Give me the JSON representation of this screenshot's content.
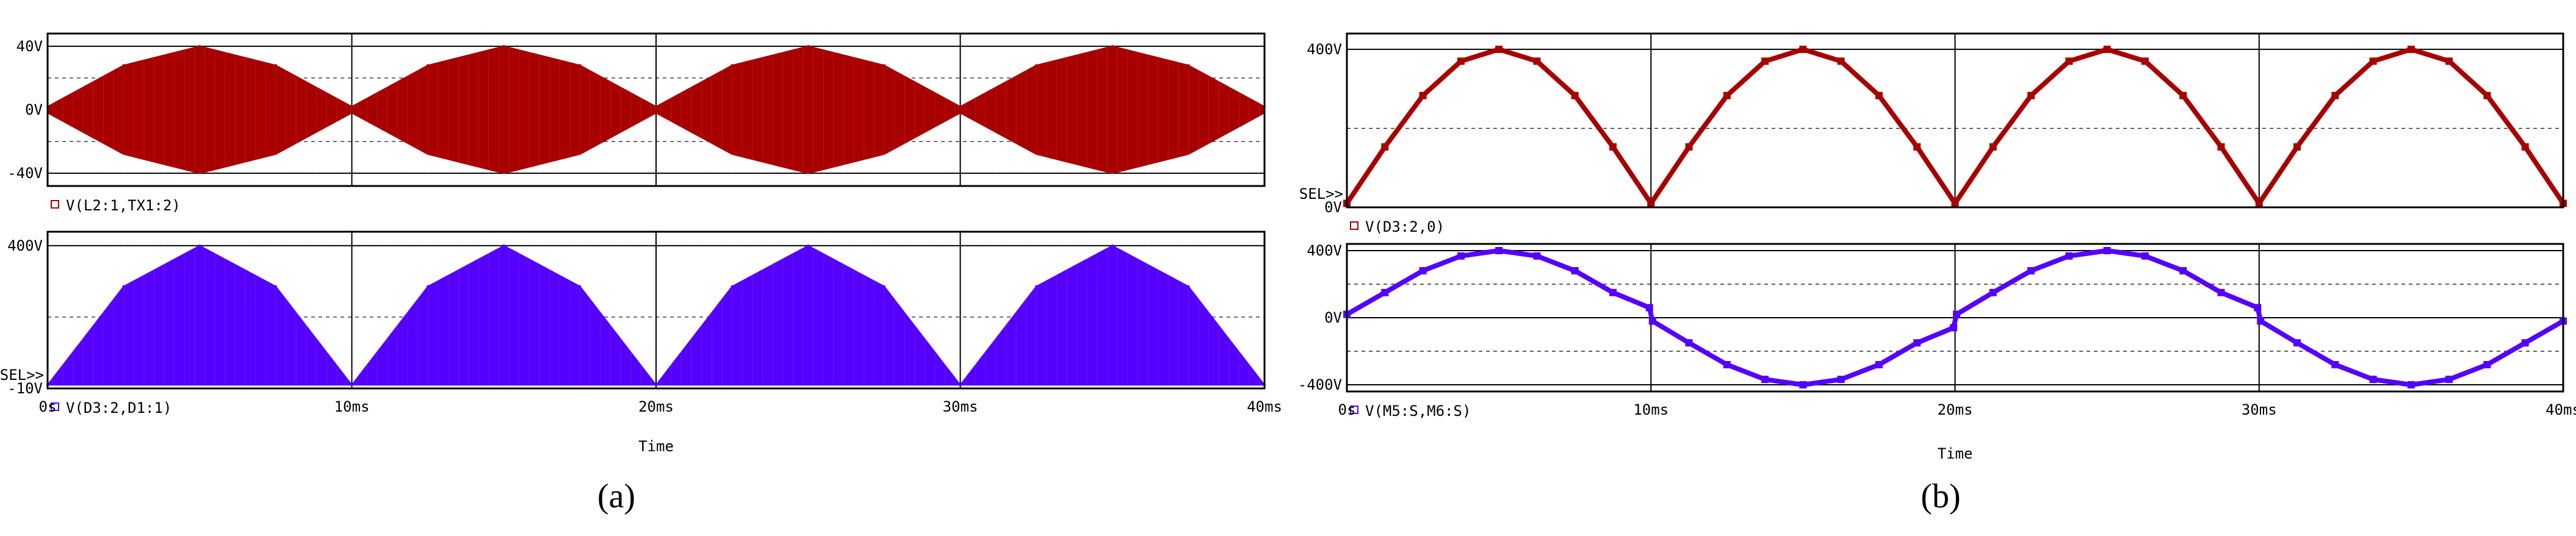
{
  "chart_data": [
    {
      "id": "a",
      "caption": "(a)",
      "xlabel": "Time",
      "x_ticks": [
        "0s",
        "10ms",
        "20ms",
        "30ms",
        "40ms"
      ],
      "xlim": [
        0,
        40
      ],
      "sel_marker": "SEL>>",
      "panels": [
        {
          "type": "area",
          "series_label": "V(L2:1,TX1:2)",
          "color": "#a80000",
          "ylim": [
            -48,
            48
          ],
          "y_ticks": [
            {
              "label": "40V",
              "value": 40
            },
            {
              "label": "0V",
              "value": 0
            },
            {
              "label": "-40V",
              "value": -40
            }
          ],
          "envelope": {
            "x": [
              0,
              2.5,
              5,
              7.5,
              10,
              12.5,
              15,
              17.5,
              20,
              22.5,
              25,
              27.5,
              30,
              32.5,
              35,
              37.5,
              40
            ],
            "upper": [
              2,
              28,
              40,
              28,
              2,
              28,
              40,
              28,
              2,
              28,
              40,
              28,
              2,
              28,
              40,
              28,
              2
            ],
            "lower": [
              -2,
              -28,
              -40,
              -28,
              -2,
              -28,
              -40,
              -28,
              -2,
              -28,
              -40,
              -28,
              -2,
              -28,
              -40,
              -28,
              -2
            ]
          },
          "show_sel": false
        },
        {
          "type": "area",
          "series_label": "V(D3:2,D1:1)",
          "color": "#5500ff",
          "ylim": [
            -10,
            440
          ],
          "y_ticks": [
            {
              "label": "400V",
              "value": 400
            },
            {
              "label": "-10V",
              "value": -10
            }
          ],
          "envelope": {
            "x": [
              0,
              2.5,
              5,
              7.5,
              10,
              12.5,
              15,
              17.5,
              20,
              22.5,
              25,
              27.5,
              30,
              32.5,
              35,
              37.5,
              40
            ],
            "upper": [
              0,
              283,
              400,
              283,
              0,
              283,
              400,
              283,
              0,
              283,
              400,
              283,
              0,
              283,
              400,
              283,
              0
            ],
            "lower": [
              0,
              0,
              0,
              0,
              0,
              0,
              0,
              0,
              0,
              0,
              0,
              0,
              0,
              0,
              0,
              0,
              0
            ]
          },
          "show_sel": true
        }
      ]
    },
    {
      "id": "b",
      "caption": "(b)",
      "xlabel": "Time",
      "x_ticks": [
        "0s",
        "10ms",
        "20ms",
        "30ms",
        "40ms"
      ],
      "xlim": [
        0,
        40
      ],
      "sel_marker": "SEL>>",
      "panels": [
        {
          "type": "line",
          "series_label": "V(D3:2,0)",
          "color": "#a80000",
          "ylim": [
            0,
            440
          ],
          "y_ticks": [
            {
              "label": "400V",
              "value": 400
            },
            {
              "label": "0V",
              "value": 0
            }
          ],
          "x": [
            0,
            1.25,
            2.5,
            3.75,
            5,
            6.25,
            7.5,
            8.75,
            10,
            11.25,
            12.5,
            13.75,
            15,
            16.25,
            17.5,
            18.75,
            20,
            21.25,
            22.5,
            23.75,
            25,
            26.25,
            27.5,
            28.75,
            30,
            31.25,
            32.5,
            33.75,
            35,
            36.25,
            37.5,
            38.75,
            40
          ],
          "y": [
            10,
            153,
            283,
            370,
            400,
            370,
            283,
            153,
            10,
            153,
            283,
            370,
            400,
            370,
            283,
            153,
            10,
            153,
            283,
            370,
            400,
            370,
            283,
            153,
            10,
            153,
            283,
            370,
            400,
            370,
            283,
            153,
            10
          ],
          "show_sel": true
        },
        {
          "type": "line",
          "series_label": "V(M5:S,M6:S)",
          "color": "#5500ff",
          "ylim": [
            -440,
            440
          ],
          "y_ticks": [
            {
              "label": "400V",
              "value": 400
            },
            {
              "label": "0V",
              "value": 0
            },
            {
              "label": "-400V",
              "value": -400
            }
          ],
          "x": [
            0,
            1.25,
            2.5,
            3.75,
            5,
            6.25,
            7.5,
            8.75,
            9.95,
            10.05,
            11.25,
            12.5,
            13.75,
            15,
            16.25,
            17.5,
            18.75,
            19.95,
            20.05,
            21.25,
            22.5,
            23.75,
            25,
            26.25,
            27.5,
            28.75,
            29.95,
            30.05,
            31.25,
            32.5,
            33.75,
            35,
            36.25,
            37.5,
            38.75,
            40
          ],
          "y": [
            20,
            150,
            280,
            368,
            400,
            368,
            280,
            150,
            60,
            -20,
            -150,
            -280,
            -368,
            -400,
            -368,
            -280,
            -150,
            -60,
            20,
            150,
            280,
            368,
            400,
            368,
            280,
            150,
            60,
            -20,
            -150,
            -280,
            -368,
            -400,
            -368,
            -280,
            -150,
            -20
          ],
          "show_sel": false
        }
      ]
    }
  ]
}
